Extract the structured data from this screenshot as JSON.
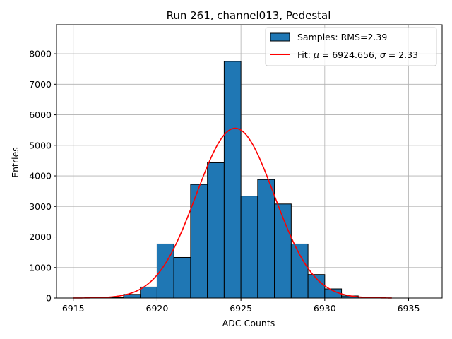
{
  "chart_data": {
    "type": "bar",
    "title": "Run 261, channel013, Pedestal",
    "xlabel": "ADC Counts",
    "ylabel": "Entries",
    "xlim": [
      6914,
      6937
    ],
    "ylim": [
      0,
      8950
    ],
    "xticks": [
      6915,
      6920,
      6925,
      6930,
      6935
    ],
    "yticks": [
      0,
      1000,
      2000,
      3000,
      4000,
      5000,
      6000,
      7000,
      8000
    ],
    "grid": true,
    "legend_position": "top-right",
    "histogram": {
      "name": "Samples: RMS=2.39",
      "bin_width": 1,
      "bins": [
        {
          "x0": 6917,
          "count": 20
        },
        {
          "x0": 6918,
          "count": 120
        },
        {
          "x0": 6919,
          "count": 360
        },
        {
          "x0": 6920,
          "count": 1770
        },
        {
          "x0": 6921,
          "count": 1330
        },
        {
          "x0": 6922,
          "count": 3720
        },
        {
          "x0": 6923,
          "count": 4430
        },
        {
          "x0": 6924,
          "count": 7750
        },
        {
          "x0": 6925,
          "count": 3340
        },
        {
          "x0": 6926,
          "count": 3880
        },
        {
          "x0": 6927,
          "count": 3080
        },
        {
          "x0": 6928,
          "count": 1770
        },
        {
          "x0": 6929,
          "count": 770
        },
        {
          "x0": 6930,
          "count": 300
        },
        {
          "x0": 6931,
          "count": 70
        }
      ],
      "color": "#1f77b4",
      "edgecolor": "#000000"
    },
    "fit": {
      "name_prefix": "Fit: ",
      "mu_symbol": "μ",
      "sigma_symbol": "σ",
      "mu_text": " = 6924.656, ",
      "sigma_text": " = 2.33",
      "mu": 6924.656,
      "sigma": 2.33,
      "amplitude": 5560,
      "x_range": [
        6915,
        6934
      ],
      "color": "#ff0000"
    }
  }
}
